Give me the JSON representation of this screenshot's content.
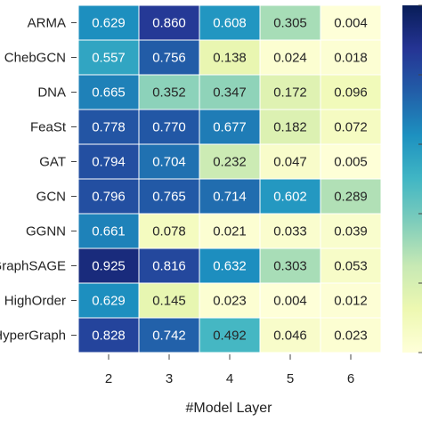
{
  "chart_data": {
    "type": "heatmap",
    "xlabel": "#Model Layer",
    "x_categories": [
      "2",
      "3",
      "4",
      "5",
      "6"
    ],
    "y_categories": [
      "ARMA",
      "ChebGCN",
      "DNA",
      "FeaSt",
      "GAT",
      "GCN",
      "GGNN",
      "GraphSAGE",
      "HighOrder",
      "HyperGraph"
    ],
    "values": [
      [
        0.629,
        0.86,
        0.608,
        0.305,
        0.004
      ],
      [
        0.557,
        0.756,
        0.138,
        0.024,
        0.018
      ],
      [
        0.665,
        0.352,
        0.347,
        0.172,
        0.096
      ],
      [
        0.778,
        0.77,
        0.677,
        0.182,
        0.072
      ],
      [
        0.794,
        0.704,
        0.232,
        0.047,
        0.005
      ],
      [
        0.796,
        0.765,
        0.714,
        0.602,
        0.289
      ],
      [
        0.661,
        0.078,
        0.021,
        0.033,
        0.039
      ],
      [
        0.925,
        0.816,
        0.632,
        0.303,
        0.053
      ],
      [
        0.629,
        0.145,
        0.023,
        0.004,
        0.012
      ],
      [
        0.828,
        0.742,
        0.492,
        0.046,
        0.023
      ]
    ],
    "value_labels": [
      [
        "0.629",
        "0.860",
        "0.608",
        "0.305",
        "0.004"
      ],
      [
        "0.557",
        "0.756",
        "0.138",
        "0.024",
        "0.018"
      ],
      [
        "0.665",
        "0.352",
        "0.347",
        "0.172",
        "0.096"
      ],
      [
        "0.778",
        "0.770",
        "0.677",
        "0.182",
        "0.072"
      ],
      [
        "0.794",
        "0.704",
        "0.232",
        "0.047",
        "0.005"
      ],
      [
        "0.796",
        "0.765",
        "0.714",
        "0.602",
        "0.289"
      ],
      [
        "0.661",
        "0.078",
        "0.021",
        "0.033",
        "0.039"
      ],
      [
        "0.925",
        "0.816",
        "0.632",
        "0.303",
        "0.053"
      ],
      [
        "0.629",
        "0.145",
        "0.023",
        "0.004",
        "0.012"
      ],
      [
        "0.828",
        "0.742",
        "0.492",
        "0.046",
        "0.023"
      ]
    ],
    "colormap": "YlGnBu",
    "colormap_stops": [
      "#ffffd9",
      "#edf8b1",
      "#c7e9b4",
      "#7fcdbb",
      "#41b6c4",
      "#1d91c0",
      "#225ea8",
      "#253494",
      "#081d58"
    ],
    "color_range": [
      0,
      1
    ],
    "colorbar": true,
    "cell_gridlines": true
  }
}
